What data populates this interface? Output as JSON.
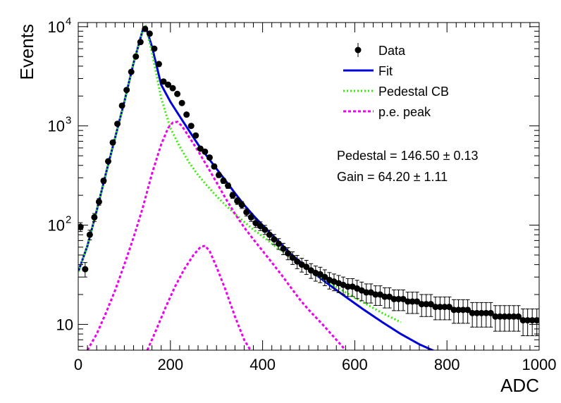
{
  "chart_data": {
    "type": "scatter",
    "xlabel": "ADC",
    "ylabel": "Events",
    "xlim": [
      0,
      1000
    ],
    "ylim": [
      5.5,
      11000
    ],
    "yscale": "log",
    "xticks": [
      0,
      200,
      400,
      600,
      800,
      1000
    ],
    "xtick_labels": [
      "0",
      "200",
      "400",
      "600",
      "800",
      "1000"
    ],
    "yticks": [
      {
        "value": 10,
        "base": "10",
        "exp": ""
      },
      {
        "value": 100,
        "base": "10",
        "exp": "2"
      },
      {
        "value": 1000,
        "base": "10",
        "exp": "3"
      },
      {
        "value": 10000,
        "base": "10",
        "exp": "4"
      }
    ],
    "legend": {
      "placement": "top-right",
      "entries": [
        {
          "label": "Data",
          "style": "marker",
          "color": "#000000"
        },
        {
          "label": "Fit",
          "style": "solid",
          "color": "#0000dd"
        },
        {
          "label": "Pedestal CB",
          "style": "dotted",
          "color": "#33ee00"
        },
        {
          "label": "p.e. peak",
          "style": "dashed",
          "color": "#ee00ee"
        }
      ]
    },
    "annotations": [
      {
        "text": "Pedestal = 146.50",
        "pm": "±",
        "err": "0.13"
      },
      {
        "text": "Gain = 64.20",
        "pm": "±",
        "err": "1.11"
      }
    ],
    "series": [
      {
        "name": "Data",
        "kind": "points",
        "color": "#000000",
        "x": [
          5,
          15,
          25,
          35,
          45,
          55,
          65,
          75,
          85,
          95,
          105,
          115,
          125,
          135,
          145,
          155,
          165,
          175,
          185,
          195,
          205,
          215,
          225,
          235,
          245,
          255,
          265,
          275,
          285,
          295,
          305,
          315,
          325,
          335,
          345,
          355,
          365,
          375,
          385,
          395,
          405,
          415,
          425,
          435,
          445,
          455,
          465,
          475,
          485,
          495,
          505,
          515,
          525,
          535,
          545,
          555,
          565,
          575,
          585,
          595,
          605,
          615,
          625,
          635,
          645,
          655,
          665,
          675,
          685,
          695,
          705,
          715,
          725,
          735,
          745,
          755,
          765,
          775,
          785,
          795,
          805,
          815,
          825,
          835,
          845,
          855,
          865,
          875,
          885,
          895,
          905,
          915,
          925,
          935,
          945,
          955,
          965,
          975,
          985,
          995
        ],
        "y": [
          96,
          36,
          80,
          120,
          172,
          280,
          440,
          680,
          1050,
          1600,
          2300,
          3500,
          5000,
          7000,
          9500,
          8500,
          6000,
          4200,
          2800,
          2600,
          2400,
          2100,
          1700,
          1300,
          1000,
          800,
          590,
          550,
          480,
          390,
          320,
          280,
          250,
          200,
          175,
          160,
          135,
          120,
          105,
          98,
          90,
          80,
          72,
          65,
          58,
          52,
          47,
          43,
          40,
          38,
          35,
          33,
          32,
          30,
          28,
          27,
          26,
          25,
          24,
          24,
          23,
          22,
          21,
          21,
          20,
          20,
          19,
          19,
          18,
          18,
          18,
          17,
          17,
          17,
          16,
          16,
          16,
          15,
          15,
          15,
          15,
          14,
          14,
          14,
          14,
          13,
          13,
          13,
          13,
          13,
          12,
          12,
          12,
          12,
          12,
          12,
          11,
          11,
          11,
          11
        ]
      },
      {
        "name": "Fit",
        "kind": "line",
        "color": "#0000dd",
        "x": [
          0,
          20,
          40,
          60,
          80,
          100,
          120,
          140,
          146.5,
          160,
          180,
          200,
          220,
          240,
          260,
          280,
          300,
          320,
          340,
          360,
          380,
          400,
          430,
          460,
          500,
          540,
          580,
          620,
          660,
          700,
          740,
          780
        ],
        "y": [
          34,
          62,
          140,
          330,
          760,
          1750,
          4300,
          9300,
          10000,
          6300,
          2600,
          1750,
          1250,
          900,
          650,
          490,
          370,
          280,
          210,
          160,
          125,
          100,
          72,
          52,
          36,
          26,
          19,
          14,
          10.5,
          8,
          6.3,
          5.2
        ]
      },
      {
        "name": "Pedestal CB",
        "kind": "line",
        "color": "#33ee00",
        "x": [
          0,
          20,
          40,
          60,
          80,
          100,
          120,
          140,
          146.5,
          160,
          180,
          200,
          220,
          240,
          260,
          280,
          300,
          320,
          340,
          360,
          380,
          400,
          430,
          460,
          500,
          540,
          580,
          620,
          660,
          700
        ],
        "y": [
          34,
          62,
          140,
          330,
          760,
          1750,
          4300,
          9300,
          10000,
          5500,
          1900,
          950,
          620,
          430,
          320,
          248,
          196,
          158,
          130,
          108,
          90,
          77,
          60,
          48,
          36,
          27,
          21,
          16.5,
          13,
          10.5
        ]
      },
      {
        "name": "p.e. peak",
        "kind": "line",
        "color": "#ee00ee",
        "x": [
          20,
          40,
          60,
          80,
          100,
          120,
          140,
          160,
          180,
          195,
          205,
          215,
          225,
          240,
          260,
          280,
          300,
          320,
          340,
          360,
          380,
          400,
          420,
          440,
          460,
          480,
          500,
          530,
          560,
          580
        ],
        "y": [
          5.5,
          8,
          13,
          22,
          40,
          75,
          150,
          330,
          650,
          950,
          1080,
          1100,
          1000,
          780,
          560,
          390,
          270,
          185,
          130,
          95,
          72,
          55,
          42,
          32,
          24,
          18,
          14,
          10,
          7,
          5.5
        ]
      },
      {
        "name": "p.e. peak 2",
        "kind": "line",
        "color": "#ee00ee",
        "x": [
          150,
          170,
          190,
          210,
          230,
          250,
          265,
          275,
          285,
          300,
          320,
          340,
          360,
          385
        ],
        "y": [
          5.5,
          9,
          15,
          24,
          36,
          50,
          60,
          62,
          55,
          38,
          22,
          12,
          7,
          4.5
        ]
      }
    ]
  }
}
